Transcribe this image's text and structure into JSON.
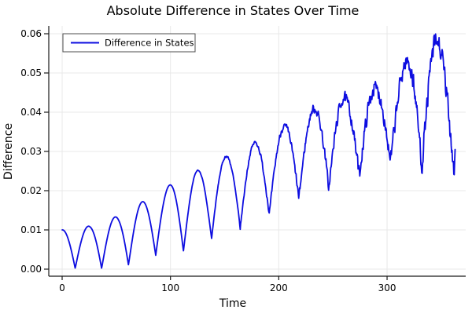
{
  "title": "Absolute Difference in States Over Time",
  "chart_data": {
    "type": "line",
    "title": "Absolute Difference in States Over Time",
    "xlabel": "Time",
    "ylabel": "Difference",
    "xlim": [
      -12.35,
      372.6
    ],
    "ylim": [
      -0.0018,
      0.062
    ],
    "grid": true,
    "xticks": {
      "values": [
        0,
        100,
        200,
        300
      ],
      "labels": [
        "0",
        "100",
        "200",
        "300"
      ]
    },
    "yticks": {
      "values": [
        0.0,
        0.01,
        0.02,
        0.03,
        0.04,
        0.05,
        0.06
      ],
      "labels": [
        "0.00",
        "0.01",
        "0.02",
        "0.03",
        "0.04",
        "0.05",
        "0.06"
      ]
    },
    "legend": {
      "position": "top-left",
      "entries": [
        "Difference in States"
      ]
    },
    "style": {
      "line_color": "#0d0de0",
      "grid_color": "#e8e8e8",
      "axis_color": "#1a1a1a",
      "legend_border_color": "#4d4d4d",
      "background": "#ffffff"
    },
    "series": [
      {
        "name": "Difference in States",
        "color": "#0d0de0",
        "t_start": 0,
        "t_end": 363,
        "t_step": 0.4,
        "model": {
          "description": "abs-oscillation with rising envelope plus growing noise",
          "period_base": 24,
          "period_growth": 0.016,
          "envelope_peaks": [
            [
              0,
              0.01
            ],
            [
              26,
              0.011
            ],
            [
              52,
              0.0136
            ],
            [
              79,
              0.018
            ],
            [
              105,
              0.0224
            ],
            [
              134,
              0.0264
            ],
            [
              163,
              0.0303
            ],
            [
              191,
              0.034
            ],
            [
              218,
              0.0386
            ],
            [
              245,
              0.0428
            ],
            [
              270,
              0.044
            ],
            [
              295,
              0.0468
            ],
            [
              318,
              0.0528
            ],
            [
              341,
              0.0596
            ],
            [
              363,
              0.052
            ]
          ],
          "envelope_troughs": [
            [
              12,
              0.0002
            ],
            [
              38,
              0.0002
            ],
            [
              64,
              0.0012
            ],
            [
              91,
              0.004
            ],
            [
              118,
              0.0048
            ],
            [
              146,
              0.009
            ],
            [
              172,
              0.011
            ],
            [
              198,
              0.015
            ],
            [
              225,
              0.0188
            ],
            [
              251,
              0.021
            ],
            [
              277,
              0.024
            ],
            [
              303,
              0.0268
            ],
            [
              329,
              0.0262
            ],
            [
              354,
              0.0258
            ]
          ],
          "noise": {
            "seed": 7,
            "base_amp": 0.004,
            "onset_t": 100,
            "power": 1.5
          }
        }
      }
    ]
  }
}
